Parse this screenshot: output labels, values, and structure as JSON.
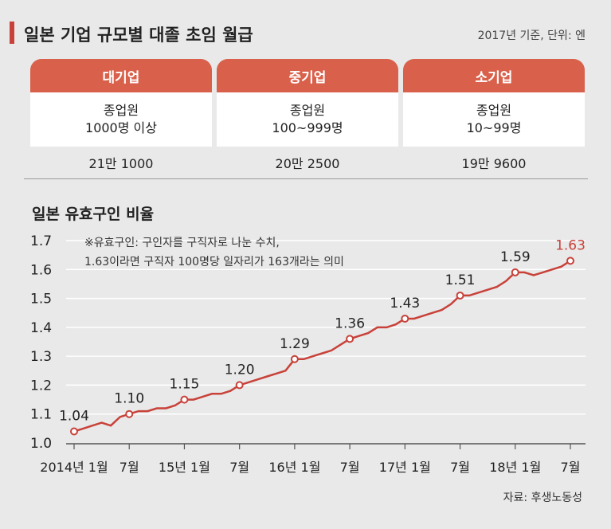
{
  "header": {
    "title": "일본 기업 규모별 대졸 초임 월급",
    "note": "2017년 기준, 단위: 엔"
  },
  "table": {
    "columns": [
      {
        "name": "대기업",
        "employees_label": "종업원",
        "employees_range": "1000명 이상",
        "wage": "21만 1000"
      },
      {
        "name": "중기업",
        "employees_label": "종업원",
        "employees_range": "100~999명",
        "wage": "20만 2500"
      },
      {
        "name": "소기업",
        "employees_label": "종업원",
        "employees_range": "10~99명",
        "wage": "19만 9600"
      }
    ]
  },
  "source": "자료: 후생노동성",
  "chart_data": {
    "type": "line",
    "title": "일본 유효구인 비율",
    "annotation": [
      "※유효구인: 구인자를 구직자로 나눈 수치,",
      "1.63이라면 구직자 100명당 일자리가 163개라는 의미"
    ],
    "ylim": [
      1.0,
      1.7
    ],
    "yticks": [
      "1.0",
      "1.1",
      "1.2",
      "1.3",
      "1.4",
      "1.5",
      "1.6",
      "1.7"
    ],
    "xticks": [
      {
        "label": "2014년 1월",
        "month": 0
      },
      {
        "label": "7월",
        "month": 6
      },
      {
        "label": "15년 1월",
        "month": 12
      },
      {
        "label": "7월",
        "month": 18
      },
      {
        "label": "16년 1월",
        "month": 24
      },
      {
        "label": "7월",
        "month": 30
      },
      {
        "label": "17년 1월",
        "month": 36
      },
      {
        "label": "7월",
        "month": 42
      },
      {
        "label": "18년 1월",
        "month": 48
      },
      {
        "label": "7월",
        "month": 54
      }
    ],
    "line_color": "#c8423a",
    "series": [
      {
        "values": [
          1.04,
          1.05,
          1.06,
          1.07,
          1.06,
          1.09,
          1.1,
          1.11,
          1.11,
          1.12,
          1.12,
          1.13,
          1.15,
          1.15,
          1.16,
          1.17,
          1.17,
          1.18,
          1.2,
          1.21,
          1.22,
          1.23,
          1.24,
          1.25,
          1.29,
          1.29,
          1.3,
          1.31,
          1.32,
          1.34,
          1.36,
          1.37,
          1.38,
          1.4,
          1.4,
          1.41,
          1.43,
          1.43,
          1.44,
          1.45,
          1.46,
          1.48,
          1.51,
          1.51,
          1.52,
          1.53,
          1.54,
          1.56,
          1.59,
          1.59,
          1.58,
          1.59,
          1.6,
          1.61,
          1.63
        ]
      }
    ],
    "labeled_points": [
      {
        "month": 0,
        "label": "1.04"
      },
      {
        "month": 6,
        "label": "1.10"
      },
      {
        "month": 12,
        "label": "1.15"
      },
      {
        "month": 18,
        "label": "1.20"
      },
      {
        "month": 24,
        "label": "1.29"
      },
      {
        "month": 30,
        "label": "1.36"
      },
      {
        "month": 36,
        "label": "1.43"
      },
      {
        "month": 42,
        "label": "1.51"
      },
      {
        "month": 48,
        "label": "1.59"
      },
      {
        "month": 54,
        "label": "1.63",
        "highlight": true
      }
    ]
  }
}
